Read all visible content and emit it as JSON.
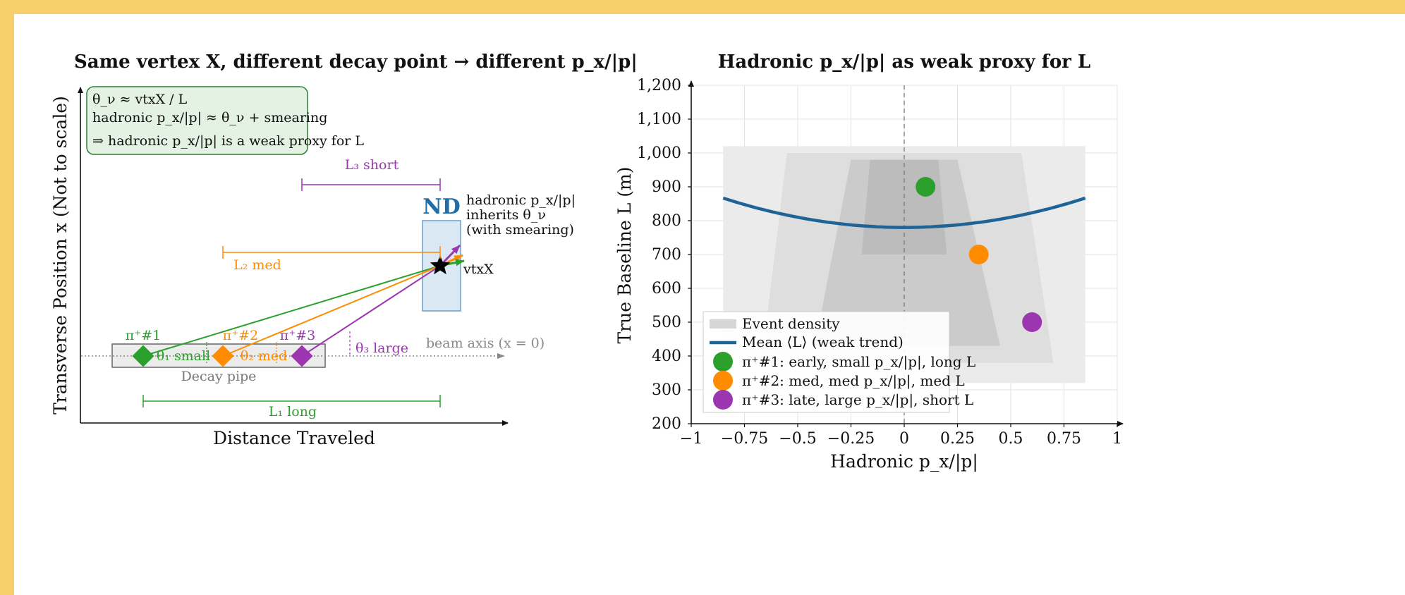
{
  "colors": {
    "green": "#2ca02c",
    "orange": "#ff8c00",
    "purple": "#9b36b0",
    "blue": "#1f6496",
    "nd_fill": "#dbe9f5",
    "nd_stroke": "#6aa0cc",
    "note_fill": "#e4f2e3",
    "note_stroke": "#2e7d32",
    "background": "#f6ce6a"
  },
  "left": {
    "title": "Same vertex X, different decay point → different p_x/|p|",
    "xlabel": "Distance Traveled",
    "ylabel": "Transverse Position x (Not to scale)",
    "note_lines": [
      "θ_ν ≈ vtxX / L",
      "hadronic p_x/|p| ≈ θ_ν + smearing",
      "⇒ hadronic p_x/|p| is a weak proxy for L"
    ],
    "decay_pipe": "Decay pipe",
    "beam_axis": "beam axis (x = 0)",
    "nd_label": "ND",
    "nd_note": [
      "hadronic p_x/|p|",
      "inherits θ_ν",
      "(with smearing)"
    ],
    "vtx_label": "vtxX",
    "pions": [
      {
        "label": "π⁺#1",
        "theta": "θ₁ small",
        "L": "L₁ long"
      },
      {
        "label": "π⁺#2",
        "theta": "θ₂ med",
        "L": "L₂ med"
      },
      {
        "label": "π⁺#3",
        "theta": "θ₃ large",
        "L": "L₃ short"
      }
    ]
  },
  "chart_data": {
    "type": "scatter",
    "title": "Hadronic p_x/|p| as weak proxy for L",
    "xlabel": "Hadronic p_x/|p|",
    "ylabel": "True Baseline L (m)",
    "xlim": [
      -1,
      1
    ],
    "ylim": [
      200,
      1200
    ],
    "xticks": [
      -1,
      -0.75,
      -0.5,
      -0.25,
      0,
      0.25,
      0.5,
      0.75,
      1
    ],
    "xtick_labels": [
      "−1",
      "−0.75",
      "−0.5",
      "−0.25",
      "0",
      "0.25",
      "0.5",
      "0.75",
      "1"
    ],
    "yticks": [
      200,
      300,
      400,
      500,
      600,
      700,
      800,
      900,
      1000,
      1100,
      1200
    ],
    "ytick_labels": [
      "200",
      "300",
      "400",
      "500",
      "600",
      "700",
      "800",
      "900",
      "1,000",
      "1,100",
      "1,200"
    ],
    "grid": true,
    "legend_position": "lower-left",
    "density_regions": [
      {
        "level": 1,
        "polygon": [
          [
            -0.85,
            320
          ],
          [
            0.85,
            320
          ],
          [
            0.85,
            1020
          ],
          [
            -0.85,
            1020
          ]
        ]
      },
      {
        "level": 2,
        "polygon": [
          [
            -0.67,
            380
          ],
          [
            0.7,
            380
          ],
          [
            0.55,
            1000
          ],
          [
            -0.55,
            1000
          ]
        ]
      },
      {
        "level": 3,
        "polygon": [
          [
            -0.42,
            430
          ],
          [
            0.45,
            430
          ],
          [
            0.25,
            980
          ],
          [
            -0.25,
            980
          ]
        ]
      },
      {
        "level": 4,
        "polygon": [
          [
            -0.2,
            700
          ],
          [
            0.2,
            700
          ],
          [
            0.16,
            980
          ],
          [
            -0.16,
            980
          ]
        ]
      }
    ],
    "trend": {
      "name": "Mean ⟨L⟩ (weak trend)",
      "x_range": [
        -0.85,
        0.85
      ],
      "coefficients": {
        "a": 120,
        "c": 780
      }
    },
    "series": [
      {
        "name": "π⁺#1: early, small p_x/|p|, long L",
        "x": 0.1,
        "y": 900,
        "color": "#2ca02c"
      },
      {
        "name": "π⁺#2: med, med p_x/|p|, med L",
        "x": 0.35,
        "y": 700,
        "color": "#ff8c00"
      },
      {
        "name": "π⁺#3: late, large p_x/|p|, short L",
        "x": 0.6,
        "y": 500,
        "color": "#9b36b0"
      }
    ],
    "legend": [
      "Event density",
      "Mean ⟨L⟩ (weak trend)",
      "π⁺#1: early, small p_x/|p|, long L",
      "π⁺#2: med, med p_x/|p|, med L",
      "π⁺#3: late, large p_x/|p|, short L"
    ]
  }
}
